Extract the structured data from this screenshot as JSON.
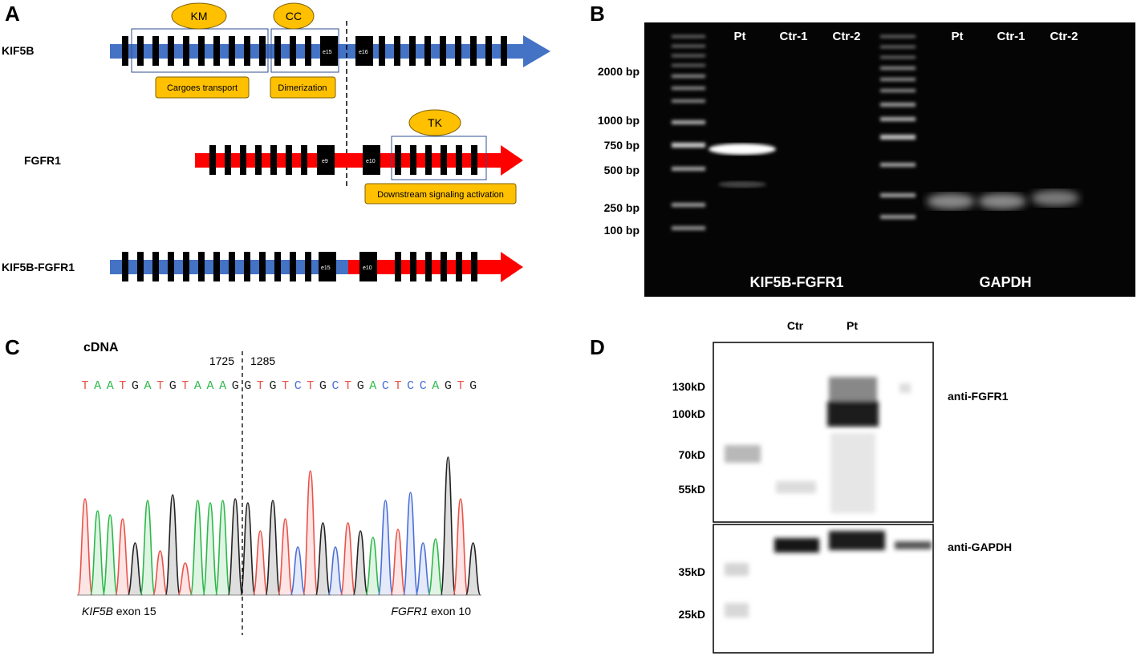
{
  "panels": {
    "a": "A",
    "b": "B",
    "c": "C",
    "d": "D"
  },
  "panel_a": {
    "genes": [
      {
        "name": "KIF5B",
        "exon_labels": [
          "e15",
          "e16"
        ]
      },
      {
        "name": "FGFR1",
        "exon_labels": [
          "e9",
          "e10"
        ]
      },
      {
        "name": "KIF5B-FGFR1",
        "exon_labels": [
          "e15",
          "e10"
        ]
      }
    ],
    "domains": [
      {
        "label": "KM",
        "function": "Cargoes transport"
      },
      {
        "label": "CC",
        "function": "Dimerization"
      },
      {
        "label": "TK",
        "function": "Downstream signaling activation"
      }
    ],
    "colors": {
      "kif5b": "#4472c4",
      "fgfr1": "#ff0000",
      "exon": "#000000",
      "domain_fill": "#ffc000"
    }
  },
  "panel_b": {
    "gel1": {
      "title": "KIF5B-FGFR1",
      "lanes": [
        "Pt",
        "Ctr-1",
        "Ctr-2"
      ]
    },
    "gel2": {
      "title": "GAPDH",
      "lanes": [
        "Pt",
        "Ctr-1",
        "Ctr-2"
      ]
    },
    "ladder": [
      "2000 bp",
      "1000 bp",
      "750 bp",
      "500 bp",
      "250 bp",
      "100 bp"
    ]
  },
  "panel_c": {
    "title": "cDNA",
    "pos_left": "1725",
    "pos_right": "1285",
    "sequence": [
      "T",
      "A",
      "A",
      "T",
      "G",
      "A",
      "T",
      "G",
      "T",
      "A",
      "A",
      "A",
      "G",
      "G",
      "T",
      "G",
      "T",
      "C",
      "T",
      "G",
      "C",
      "T",
      "G",
      "A",
      "C",
      "T",
      "C",
      "C",
      "A",
      "G",
      "T",
      "G"
    ],
    "label_left_gene": "KIF5B",
    "label_left_rest": " exon 15",
    "label_right_gene": "FGFR1",
    "label_right_rest": " exon 10",
    "base_colors": {
      "A": "#e8534a",
      "T": "#e8534a",
      "G": "#333333",
      "C": "#4a6fd8"
    }
  },
  "panel_d": {
    "lanes": [
      "Ctr",
      "Pt"
    ],
    "markers_top": [
      "130kD",
      "100kD",
      "70kD",
      "55kD"
    ],
    "markers_bottom": [
      "35kD",
      "25kD"
    ],
    "antibodies": [
      "anti-FGFR1",
      "anti-GAPDH"
    ]
  }
}
